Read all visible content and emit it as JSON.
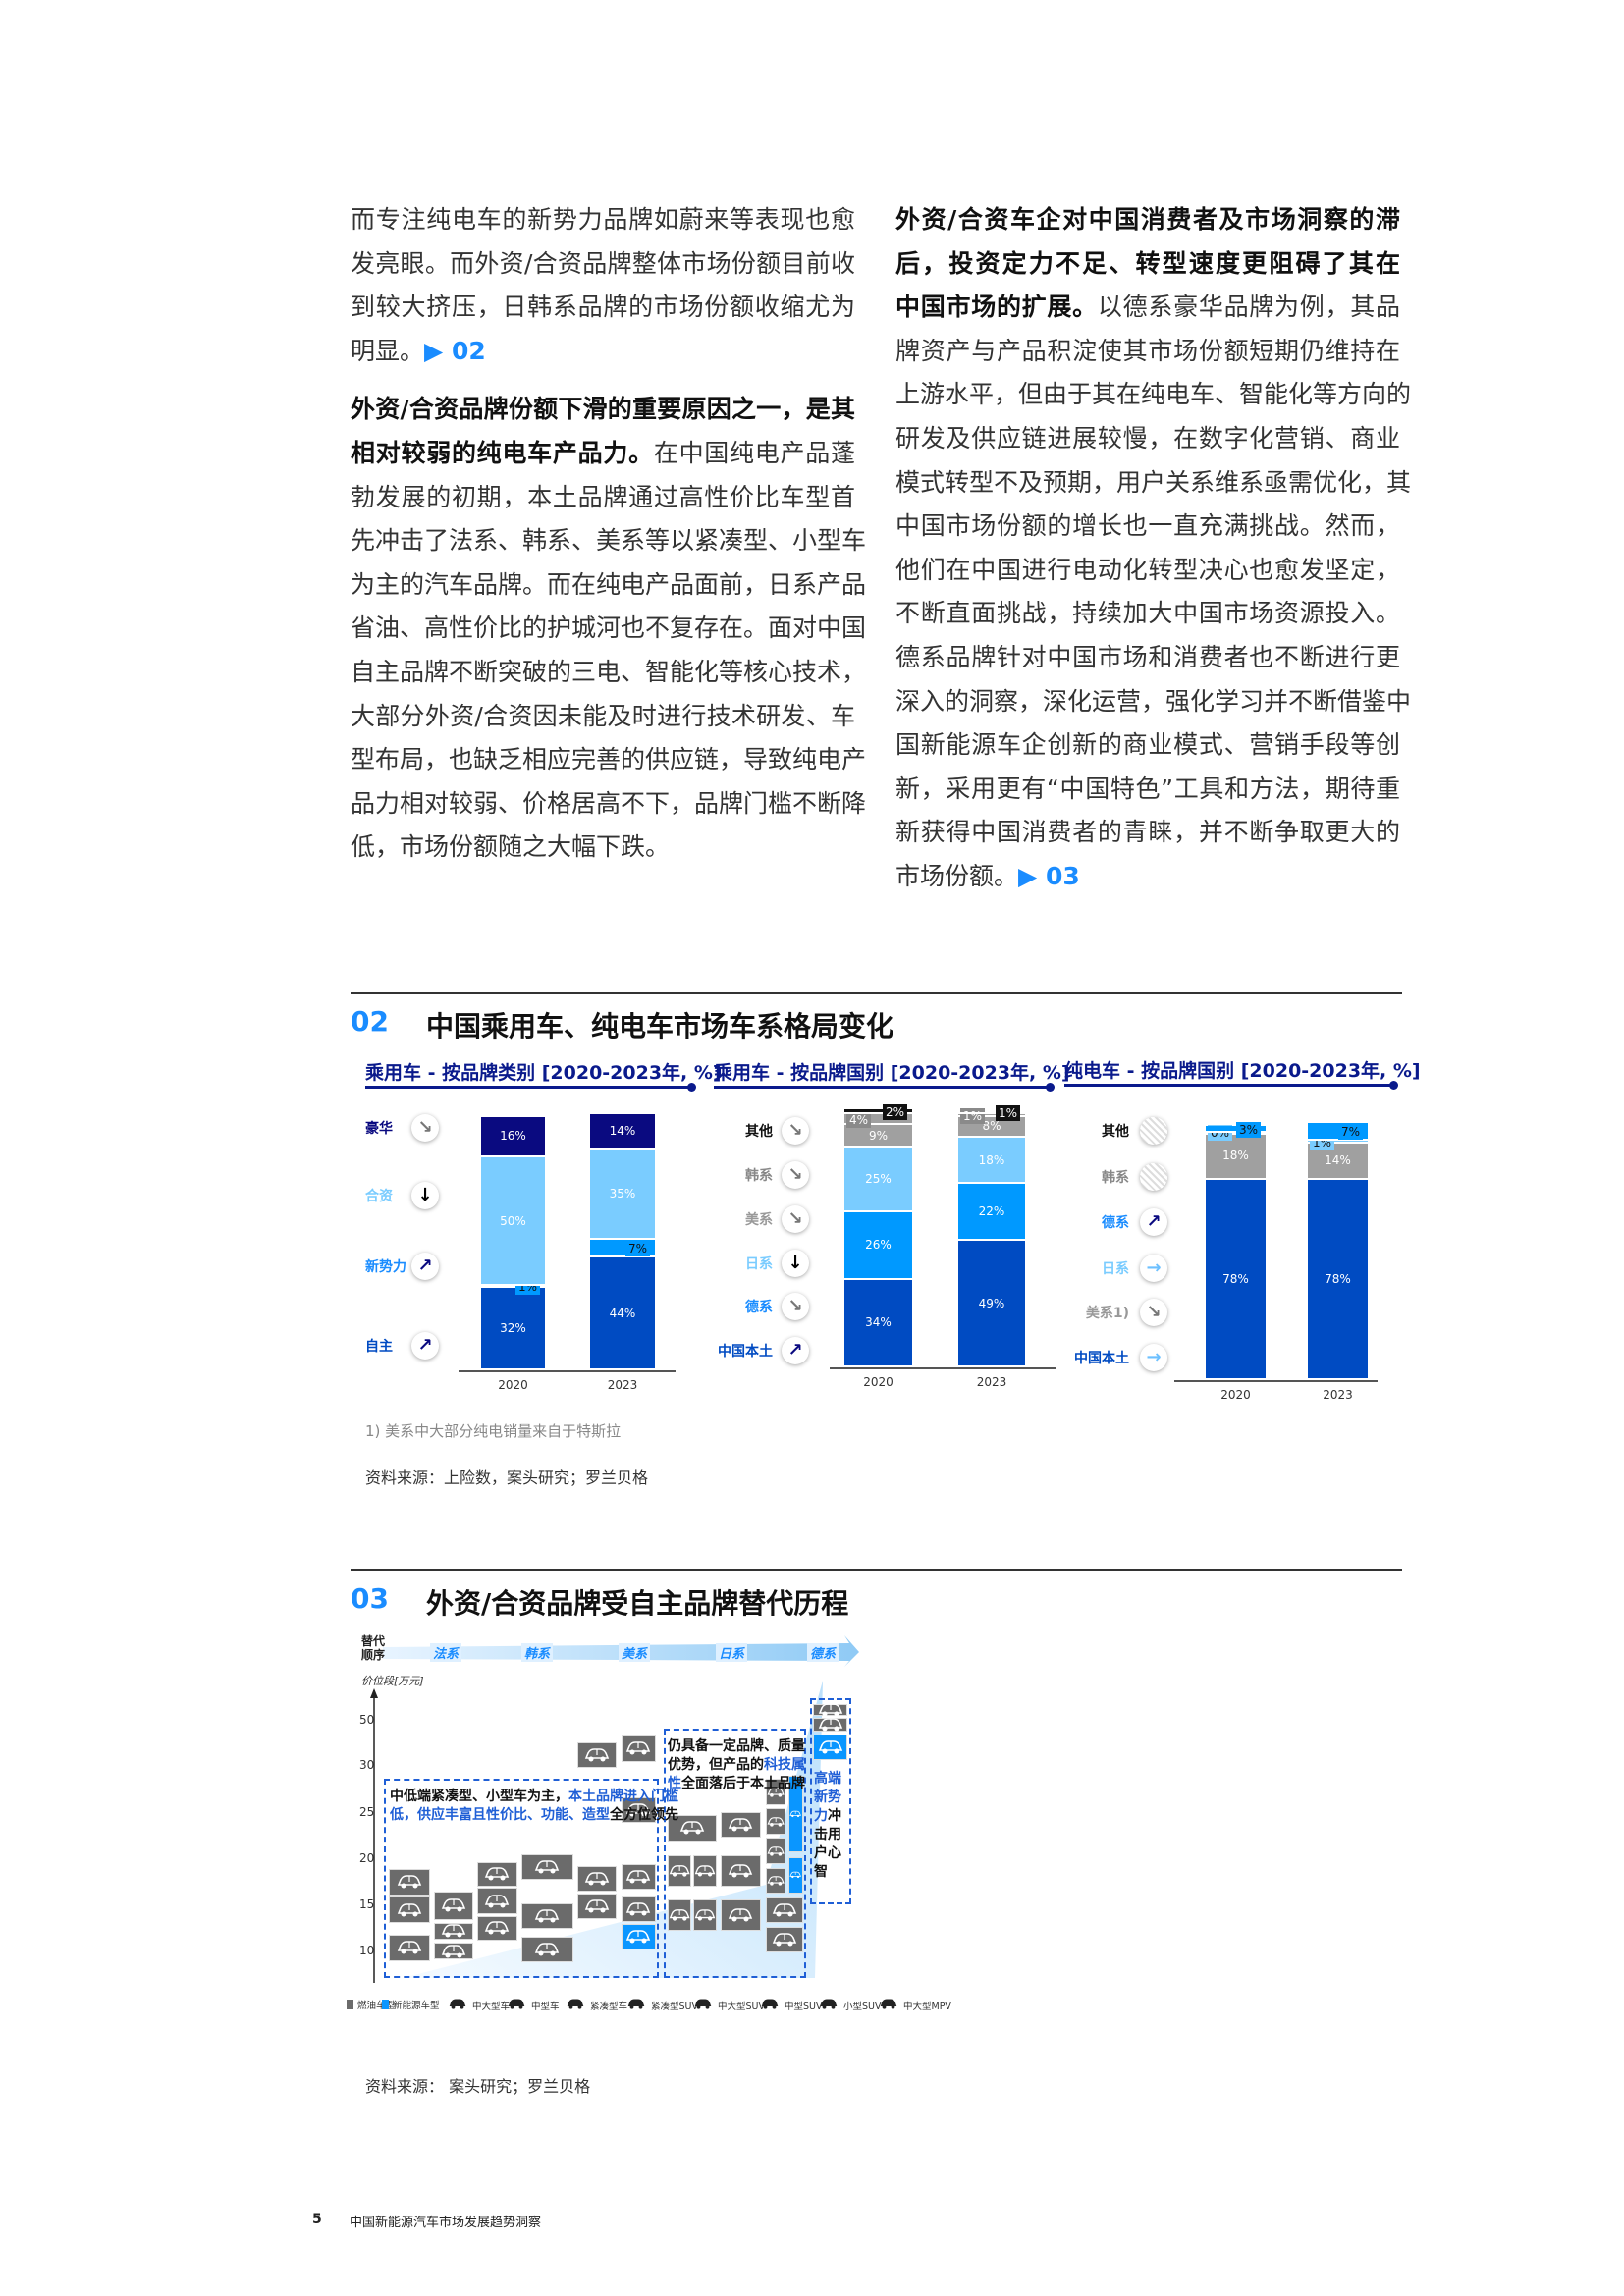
{
  "body_left": [
    [
      [
        [
          "而专注纯电车的新势力品牌如蔚来等表现也愈",
          "n"
        ]
      ],
      [
        [
          "发亮眼。而外资/合资品牌整体市场份额目前收",
          "n"
        ]
      ],
      [
        [
          "到较大挤压，日韩系品牌的市场份额收缩尤为",
          "n"
        ]
      ],
      [
        [
          "明显。",
          "n"
        ],
        [
          "▶ 02",
          "ref"
        ]
      ]
    ],
    [
      [
        [
          "外资/合资品牌份额下滑的重要原因之一，是其",
          "b"
        ]
      ],
      [
        [
          "相对较弱的纯电车产品力。",
          "b"
        ],
        [
          "在中国纯电产品蓬",
          "n"
        ]
      ],
      [
        [
          "勃发展的初期，本土品牌通过高性价比车型首",
          "n"
        ]
      ],
      [
        [
          "先冲击了法系、韩系、美系等以紧凑型、小型车",
          "n"
        ]
      ],
      [
        [
          "为主的汽车品牌。而在纯电产品面前，日系产品",
          "n"
        ]
      ],
      [
        [
          "省油、高性价比的护城河也不复存在。面对中国",
          "n"
        ]
      ],
      [
        [
          "自主品牌不断突破的三电、智能化等核心技术，",
          "n"
        ]
      ],
      [
        [
          "大部分外资/合资因未能及时进行技术研发、车",
          "n"
        ]
      ],
      [
        [
          "型布局，也缺乏相应完善的供应链，导致纯电产",
          "n"
        ]
      ],
      [
        [
          "品力相对较弱、价格居高不下，品牌门槛不断降",
          "n"
        ]
      ],
      [
        [
          "低，市场份额随之大幅下跌。",
          "n"
        ]
      ]
    ]
  ],
  "body_right": [
    [
      [
        [
          "外资/合资车企对中国消费者及市场洞察的滞",
          "b"
        ]
      ],
      [
        [
          "后，投资定力不足、转型速度更阻碍了其在",
          "b"
        ]
      ],
      [
        [
          "中国市场的扩展。",
          "b"
        ],
        [
          "以德系豪华品牌为例，其品",
          "n"
        ]
      ],
      [
        [
          "牌资产与产品积淀使其市场份额短期仍维持在",
          "n"
        ]
      ],
      [
        [
          "上游水平，但由于其在纯电车、智能化等方向的",
          "n"
        ]
      ],
      [
        [
          "研发及供应链进展较慢，在数字化营销、商业",
          "n"
        ]
      ],
      [
        [
          "模式转型不及预期，用户关系维系亟需优化，其",
          "n"
        ]
      ],
      [
        [
          "中国市场份额的增长也一直充满挑战。然而，",
          "n"
        ]
      ],
      [
        [
          "他们在中国进行电动化转型决心也愈发坚定，",
          "n"
        ]
      ],
      [
        [
          "不断直面挑战，持续加大中国市场资源投入。",
          "n"
        ]
      ],
      [
        [
          "德系品牌针对中国市场和消费者也不断进行更",
          "n"
        ]
      ],
      [
        [
          "深入的洞察，深化运营，强化学习并不断借鉴中",
          "n"
        ]
      ],
      [
        [
          "国新能源车企创新的商业模式、营销手段等创",
          "n"
        ]
      ],
      [
        [
          "新，采用更有“中国特色”工具和方法，期待重",
          "n"
        ]
      ],
      [
        [
          "新获得中国消费者的青睐，并不断争取更大的",
          "n"
        ]
      ],
      [
        [
          "市场份额。",
          "n"
        ],
        [
          "▶ 03",
          "ref"
        ]
      ]
    ]
  ],
  "section02": {
    "number": "02",
    "title": "中国乘用车、纯电车市场车系格局变化",
    "footnote": "1) 美系中大部分纯电销量来自于特斯拉",
    "source": "资料来源：上险数，案头研究；罗兰贝格"
  },
  "chart_data": [
    {
      "type": "bar",
      "stacked": true,
      "title": "乘用车 - 按品牌类别 [2020-2023年, %]",
      "categories": [
        "2020",
        "2023"
      ],
      "series": [
        {
          "name": "自主",
          "values": [
            32,
            44
          ],
          "color": "#004bc2",
          "trend": "up"
        },
        {
          "name": "新势力",
          "values": [
            1,
            7
          ],
          "color": "#0099ff",
          "trend": "up"
        },
        {
          "name": "合资",
          "values": [
            50,
            35
          ],
          "color": "#7accff",
          "trend": "down"
        },
        {
          "name": "豪华",
          "values": [
            16,
            14
          ],
          "color": "#0a0a80",
          "trend": "slight-down"
        }
      ]
    },
    {
      "type": "bar",
      "stacked": true,
      "title": "乘用车 - 按品牌国别 [2020-2023年, %]",
      "categories": [
        "2020",
        "2023"
      ],
      "series": [
        {
          "name": "中国本土",
          "values": [
            34,
            49
          ],
          "color": "#004bc2",
          "trend": "up"
        },
        {
          "name": "德系",
          "values": [
            26,
            22
          ],
          "color": "#0099ff",
          "trend": "slight-down"
        },
        {
          "name": "日系",
          "values": [
            25,
            18
          ],
          "color": "#7accff",
          "trend": "down"
        },
        {
          "name": "美系",
          "values": [
            9,
            8
          ],
          "color": "#a0a0a0",
          "trend": "slight-down"
        },
        {
          "name": "韩系",
          "values": [
            4,
            1
          ],
          "color": "#a0a0a0",
          "trend": "slight-down"
        },
        {
          "name": "其他",
          "values": [
            2,
            1
          ],
          "color": "#111111",
          "trend": "slight-down"
        }
      ]
    },
    {
      "type": "bar",
      "stacked": true,
      "title": "纯电车 - 按品牌国别 [2020-2023年, %]",
      "categories": [
        "2020",
        "2023"
      ],
      "series": [
        {
          "name": "中国本土",
          "values": [
            78,
            78
          ],
          "color": "#004bc2",
          "trend": "flat"
        },
        {
          "name": "美系1)",
          "values": [
            18,
            14
          ],
          "color": "#a0a0a0",
          "trend": "slight-down"
        },
        {
          "name": "日系",
          "values": [
            0,
            1
          ],
          "color": "#7accff",
          "trend": "flat"
        },
        {
          "name": "德系",
          "values": [
            3,
            7
          ],
          "color": "#0099ff",
          "trend": "up"
        },
        {
          "name": "韩系",
          "values": [
            null,
            null
          ],
          "color": "#dddddd",
          "trend": "none"
        },
        {
          "name": "其他",
          "values": [
            null,
            null
          ],
          "color": "#dddddd",
          "trend": "none"
        }
      ]
    }
  ],
  "section03": {
    "number": "03",
    "title": "外资/合资品牌受自主品牌替代历程",
    "order_label": "替代\n顺序",
    "order": [
      "法系",
      "韩系",
      "美系",
      "日系",
      "德系"
    ],
    "yaxis_label": "价位段[万元]",
    "yticks": [
      "50",
      "30",
      "25",
      "20",
      "15",
      "10"
    ],
    "box1_a": "中低端紧凑型、小型车为主，",
    "box1_b": "本土品牌进入门槛低，供应丰富且性",
    "box1_c": "价比、功能、造型",
    "box1_d": "全方位领先",
    "box2_a": "仍具备一定品牌、质量优势，但产品",
    "box2_b": "的",
    "box2_c": "科技属性",
    "box2_d": "全面落后于本土品牌",
    "box3_a": "高端新势",
    "box3_b": "力",
    "box3_c": "冲击用户心智",
    "legend": [
      "燃油车型",
      "新能源车型",
      "中大型车",
      "中型车",
      "紧凑型车",
      "紧凑型SUV",
      "中大型SUV",
      "中型SUV",
      "小型SUV",
      "中大型MPV"
    ],
    "source": "资料来源：  案头研究；罗兰贝格"
  },
  "footer": {
    "page": "5",
    "title": "中国新能源汽车市场发展趋势洞察"
  }
}
